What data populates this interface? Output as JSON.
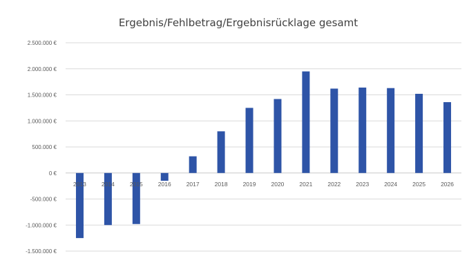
{
  "chart_data": {
    "type": "bar",
    "title": "Ergebnis/Fehlbetrag/Ergebnisrücklage gesamt",
    "xlabel": "",
    "ylabel": "",
    "categories": [
      "2013",
      "2014",
      "2015",
      "2016",
      "2017",
      "2018",
      "2019",
      "2020",
      "2021",
      "2022",
      "2023",
      "2024",
      "2025",
      "2026"
    ],
    "values": [
      -1250000,
      -1000000,
      -980000,
      -150000,
      320000,
      800000,
      1250000,
      1420000,
      1950000,
      1620000,
      1640000,
      1630000,
      1520000,
      1360000
    ],
    "ylim": [
      -1500000,
      2500000
    ],
    "yticks": [
      2500000,
      2000000,
      1500000,
      1000000,
      500000,
      0,
      -500000,
      -1000000,
      -1500000
    ],
    "ytick_labels": [
      "2.500.000 €",
      "2.000.000 €",
      "1.500.000 €",
      "1.000.000 €",
      "500.000 €",
      "0 €",
      "-500.000 €",
      "-1.000.000 €",
      "-1.500.000 €"
    ],
    "grid": true,
    "legend": "none",
    "bar_color": "#2e54a7"
  }
}
